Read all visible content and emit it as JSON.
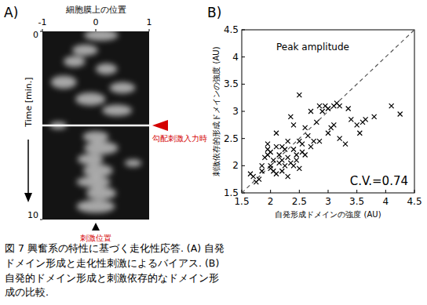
{
  "chart_data": [
    {
      "type": "kymograph",
      "panel": "A)",
      "x_label": "細胞膜上の位置",
      "y_label": "Time [min.]",
      "xlim": [
        -1,
        1
      ],
      "xticks": [
        -1,
        0,
        1
      ],
      "ylim": [
        0,
        10
      ],
      "yticks": [
        0,
        10
      ],
      "stimulus_time": 5,
      "stimulus_position": 0,
      "annotations": [
        "勾配刺激入力時",
        "刺激位置"
      ]
    },
    {
      "type": "scatter",
      "panel": "B)",
      "title": "Peak amplitude",
      "x_label": "自発形成ドメインの強度 (AU)",
      "y_label": "刺激依存的形成ドメインの強度 (AU)",
      "annotations": [
        "C.V.=0.74"
      ],
      "xlim": [
        1.5,
        4.5
      ],
      "ylim": [
        1.5,
        4.5
      ],
      "xticks": [
        1.5,
        2,
        2.5,
        3,
        3.5,
        4,
        4.5
      ],
      "yticks": [
        1.5,
        2,
        2.5,
        3,
        3.5,
        4,
        4.5
      ],
      "marker": "x",
      "color": "#000000",
      "x": [
        1.65,
        1.7,
        1.75,
        1.85,
        1.85,
        1.9,
        1.95,
        1.95,
        2.0,
        2.0,
        2.05,
        2.05,
        2.1,
        2.1,
        2.15,
        2.15,
        2.2,
        2.2,
        2.25,
        2.25,
        2.3,
        2.3,
        2.35,
        2.35,
        2.4,
        2.4,
        2.45,
        2.45,
        2.5,
        2.5,
        2.5,
        2.55,
        2.55,
        2.6,
        2.6,
        2.65,
        2.7,
        2.7,
        2.75,
        2.8,
        2.85,
        2.85,
        2.9,
        2.95,
        3.0,
        3.05,
        3.1,
        3.1,
        3.15,
        3.2,
        3.2,
        3.3,
        3.35,
        3.4,
        3.5,
        3.55,
        3.6,
        3.65,
        3.8,
        4.1,
        4.25,
        1.8,
        2.0,
        2.3,
        2.1,
        2.2,
        1.95,
        2.4,
        3.0
      ],
      "values": [
        1.85,
        1.8,
        1.7,
        1.9,
        2.0,
        2.15,
        2.3,
        2.2,
        2.0,
        1.95,
        1.9,
        2.1,
        2.35,
        1.85,
        2.2,
        2.05,
        1.9,
        2.1,
        2.0,
        2.3,
        2.45,
        2.15,
        2.05,
        2.9,
        2.0,
        2.3,
        2.2,
        2.1,
        1.95,
        2.45,
        3.3,
        2.4,
        2.25,
        2.7,
        2.2,
        2.55,
        3.0,
        2.35,
        2.45,
        2.8,
        2.45,
        3.1,
        3.0,
        3.1,
        3.05,
        2.7,
        3.1,
        2.75,
        3.15,
        3.1,
        2.5,
        2.4,
        3.05,
        2.85,
        2.75,
        2.6,
        2.8,
        2.85,
        2.9,
        3.1,
        2.95,
        1.75,
        2.25,
        1.8,
        2.6,
        2.35,
        2.4,
        2.75,
        2.6
      ]
    }
  ],
  "caption": "図 7 興奮系の特性に基づく走化性応答. (A) 自発ドメイン形成と走化性刺激によるバイアス. (B) 自発的ドメイン形成と刺激依存的なドメイン形成の比較."
}
